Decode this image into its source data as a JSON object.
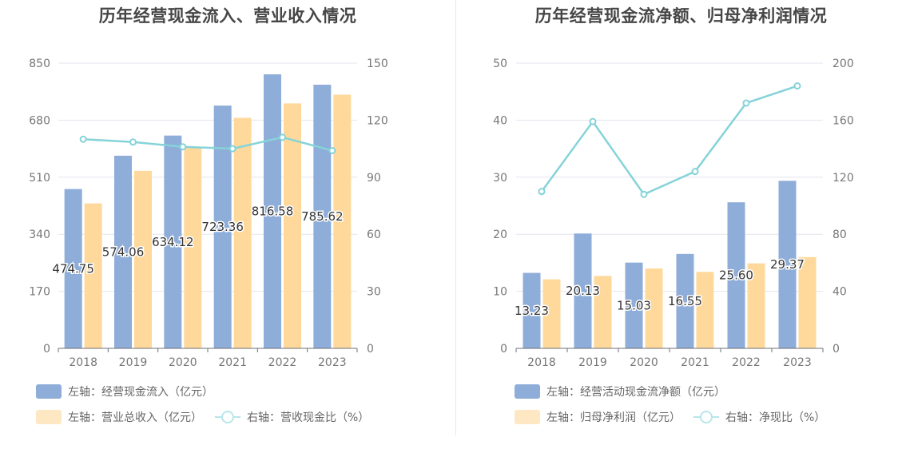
{
  "chart_data": [
    {
      "type": "bar",
      "title": "历年经营现金流入、营业收入情况",
      "categories": [
        "2018",
        "2019",
        "2020",
        "2021",
        "2022",
        "2023"
      ],
      "y_left": {
        "ticks": [
          "0",
          "170",
          "340",
          "510",
          "680",
          "850"
        ],
        "lim": [
          0,
          850
        ]
      },
      "y_right": {
        "ticks": [
          "0",
          "30",
          "60",
          "90",
          "120",
          "150"
        ],
        "lim": [
          0,
          150
        ]
      },
      "series": [
        {
          "name": "左轴：经营现金流入（亿元）",
          "type": "bar",
          "axis": "left",
          "color": "#8eadd9",
          "values": [
            474.75,
            574.06,
            634.12,
            723.36,
            816.58,
            785.62
          ],
          "labels": [
            "474.75",
            "574.06",
            "634.12",
            "723.36",
            "816.58",
            "785.62"
          ]
        },
        {
          "name": "左轴：营业总收入（亿元）",
          "type": "bar",
          "axis": "left",
          "color": "#fed99b",
          "values": [
            432,
            529,
            598,
            687,
            730,
            756
          ]
        },
        {
          "name": "右轴：营收现金比（%）",
          "type": "line",
          "axis": "right",
          "color": "#85d3d9",
          "values": [
            110,
            108.5,
            106,
            105,
            111,
            104
          ]
        }
      ],
      "grid": true,
      "legend_position": "bottom"
    },
    {
      "type": "bar",
      "title": "历年经营现金流净额、归母净利润情况",
      "categories": [
        "2018",
        "2019",
        "2020",
        "2021",
        "2022",
        "2023"
      ],
      "y_left": {
        "ticks": [
          "0",
          "10",
          "20",
          "30",
          "40",
          "50"
        ],
        "lim": [
          0,
          50
        ]
      },
      "y_right": {
        "ticks": [
          "0",
          "40",
          "80",
          "120",
          "160",
          "200"
        ],
        "lim": [
          0,
          200
        ]
      },
      "series": [
        {
          "name": "左轴：经营活动现金流净额（亿元）",
          "type": "bar",
          "axis": "left",
          "color": "#8eadd9",
          "values": [
            13.23,
            20.13,
            15.03,
            16.55,
            25.6,
            29.37
          ],
          "labels": [
            "13.23",
            "20.13",
            "15.03",
            "16.55",
            "25.60",
            "29.37"
          ]
        },
        {
          "name": "左轴：归母净利润（亿元）",
          "type": "bar",
          "axis": "left",
          "color": "#fed99b",
          "values": [
            12.1,
            12.7,
            14.0,
            13.4,
            14.9,
            16.0
          ]
        },
        {
          "name": "右轴：净现比（%）",
          "type": "line",
          "axis": "right",
          "color": "#85d3d9",
          "values": [
            110,
            159,
            108,
            124,
            172,
            184
          ]
        }
      ],
      "grid": true,
      "legend_position": "bottom"
    }
  ]
}
